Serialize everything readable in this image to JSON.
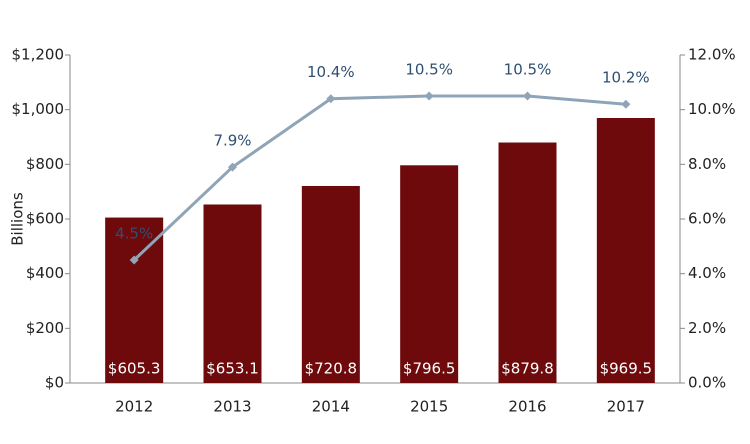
{
  "chart_data": {
    "type": "combo",
    "y_label": "Billions",
    "categories": [
      "2012",
      "2013",
      "2014",
      "2015",
      "2016",
      "2017"
    ],
    "series": [
      {
        "type": "bar",
        "color": "#6e0a0c",
        "values": [
          605.3,
          653.1,
          720.8,
          796.5,
          879.8,
          969.5
        ],
        "value_labels": [
          "$605.3",
          "$653.1",
          "$720.8",
          "$796.5",
          "$879.8",
          "$969.5"
        ]
      },
      {
        "type": "line",
        "axis": "y2",
        "color": "#8fa5b7",
        "values": [
          4.5,
          7.9,
          10.4,
          10.5,
          10.5,
          10.2
        ],
        "value_labels": [
          "4.5%",
          "7.9%",
          "10.4%",
          "10.5%",
          "10.5%",
          "10.2%"
        ]
      }
    ],
    "ylim": [
      0,
      1200
    ],
    "yticks": [
      {
        "value": 0,
        "label": "$0"
      },
      {
        "value": 200,
        "label": "$200"
      },
      {
        "value": 400,
        "label": "$400"
      },
      {
        "value": 600,
        "label": "$600"
      },
      {
        "value": 800,
        "label": "$800"
      },
      {
        "value": 1000,
        "label": "$1,000"
      },
      {
        "value": 1200,
        "label": "$1,200"
      }
    ],
    "y2lim": [
      0,
      12
    ],
    "y2ticks": [
      {
        "value": 0,
        "label": "0.0%"
      },
      {
        "value": 2,
        "label": "2.0%"
      },
      {
        "value": 4,
        "label": "4.0%"
      },
      {
        "value": 6,
        "label": "6.0%"
      },
      {
        "value": 8,
        "label": "8.0%"
      },
      {
        "value": 10,
        "label": "10.0%"
      },
      {
        "value": 12,
        "label": "12.0%"
      }
    ]
  }
}
